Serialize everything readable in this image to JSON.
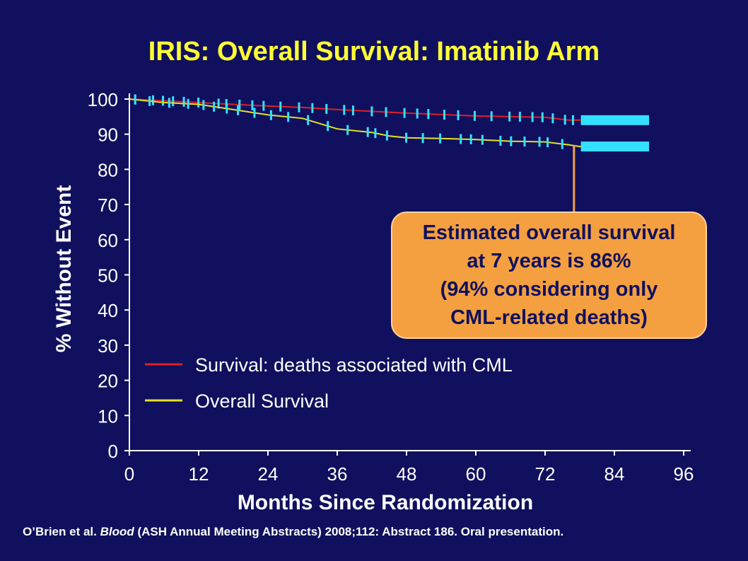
{
  "slide_title": "IRIS: Overall Survival: Imatinib Arm",
  "citation": {
    "before": "O’Brien et al. ",
    "journal": "Blood",
    "after": " (ASH Annual Meeting Abstracts) 2008;112: Abstract 186. Oral presentation."
  },
  "callout": {
    "lines": [
      "Estimated overall survival",
      "at 7 years is 86%",
      "(94% considering only",
      "CML-related deaths)"
    ],
    "color": "#f4a040"
  },
  "colors": {
    "background": "#10105e",
    "title": "#ffff33",
    "axis": "#ffffff",
    "censor": "#33e0ff"
  },
  "chart_data": {
    "type": "line",
    "title": "IRIS: Overall Survival: Imatinib Arm",
    "xlabel": "Months Since Randomization",
    "ylabel": "% Without Event",
    "xlim": [
      0,
      96
    ],
    "ylim": [
      0,
      100
    ],
    "xticks": [
      0,
      12,
      24,
      36,
      48,
      60,
      72,
      84,
      96
    ],
    "yticks": [
      0,
      10,
      20,
      30,
      40,
      50,
      60,
      70,
      80,
      90,
      100
    ],
    "legend_position": "bottom-left",
    "series": [
      {
        "name": "Survival: deaths associated with CML",
        "color": "#e02020",
        "x": [
          0,
          6,
          12,
          18,
          24,
          30,
          36,
          42,
          48,
          54,
          60,
          66,
          72,
          76,
          78,
          90
        ],
        "y": [
          100,
          99.5,
          99,
          98.5,
          98,
          97.6,
          97,
          96.5,
          96,
          95.6,
          95.2,
          95,
          94.8,
          94,
          94,
          94
        ]
      },
      {
        "name": "Overall Survival",
        "color": "#e8e020",
        "x": [
          0,
          6,
          12,
          18,
          24,
          30,
          36,
          42,
          45,
          48,
          54,
          60,
          66,
          72,
          76,
          78,
          90
        ],
        "y": [
          100,
          99,
          98.5,
          97,
          95.5,
          94.5,
          91.5,
          90.5,
          89.5,
          89,
          88.8,
          88.5,
          88,
          87.8,
          87,
          86.5,
          86.5
        ]
      }
    ],
    "annotation": {
      "text": "Estimated overall survival at 7 years is 86% (94% considering only CML-related deaths)",
      "x": 77,
      "y": 86
    }
  }
}
